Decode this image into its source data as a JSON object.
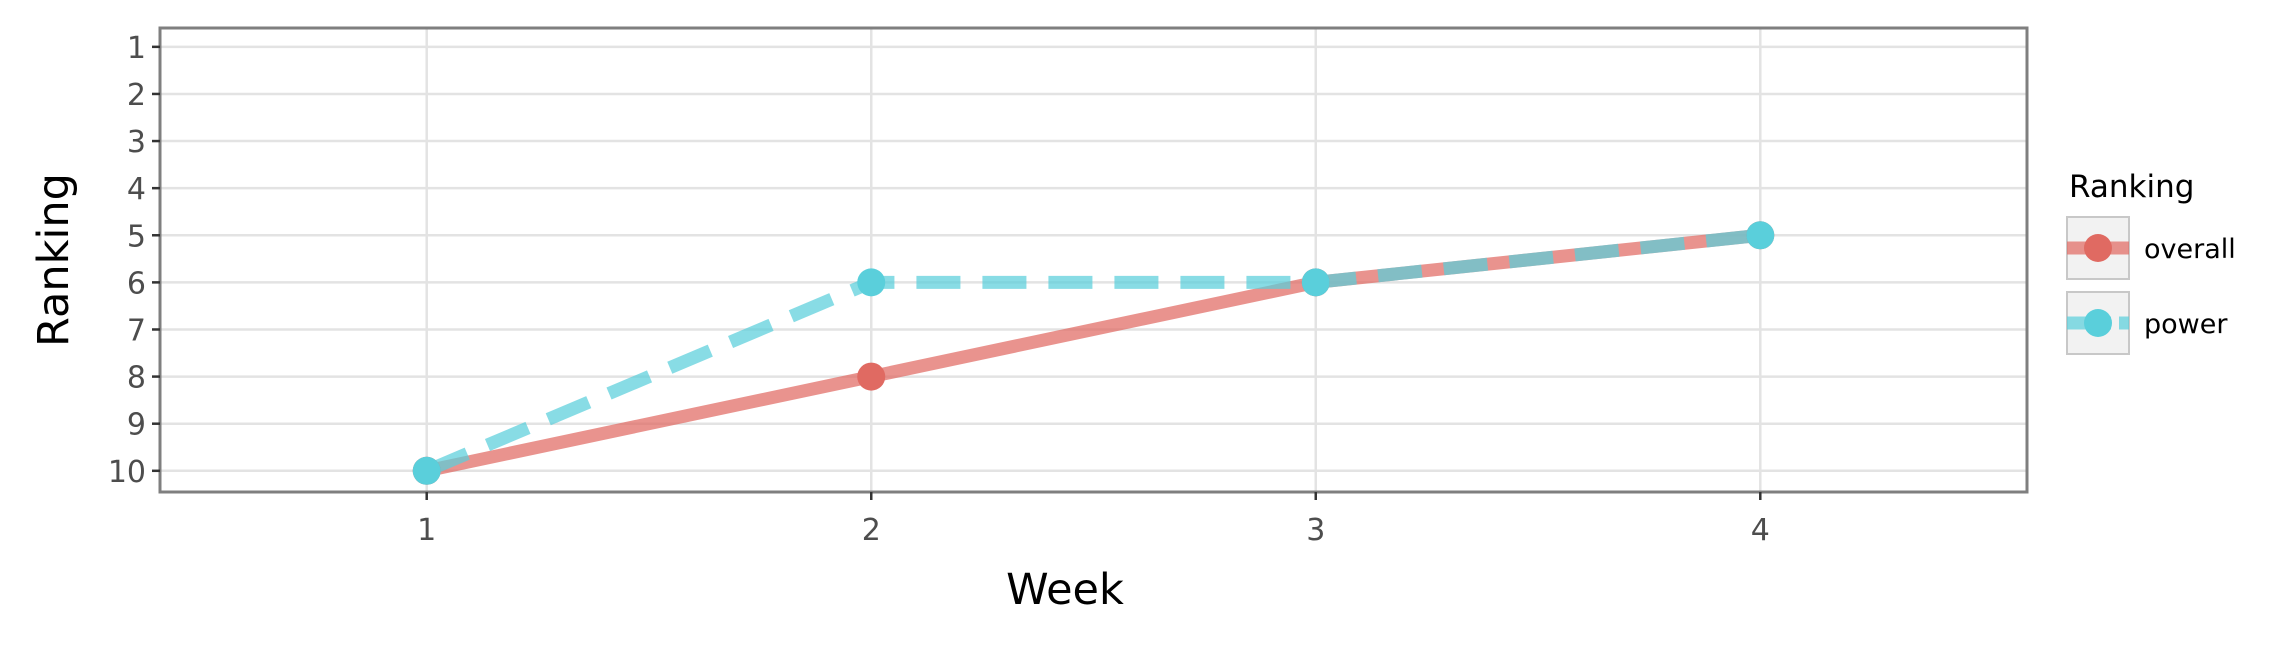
{
  "chart_data": {
    "type": "line",
    "title": "",
    "xlabel": "Week",
    "ylabel": "Ranking",
    "x": [
      1,
      2,
      3,
      4
    ],
    "xticks": [
      "1",
      "2",
      "3",
      "4"
    ],
    "yticks": [
      "1",
      "2",
      "3",
      "4",
      "5",
      "6",
      "7",
      "8",
      "9",
      "10"
    ],
    "xlim": [
      0.4,
      4.6
    ],
    "ylim": [
      0.6,
      10.45
    ],
    "y_reversed": true,
    "grid": true,
    "legend": {
      "title": "Ranking",
      "placement": "right"
    },
    "series": [
      {
        "name": "overall",
        "values": [
          10,
          8,
          6,
          5
        ],
        "color": "#E06A62",
        "line_style": "solid"
      },
      {
        "name": "power",
        "values": [
          10,
          6,
          6,
          5
        ],
        "color": "#5ACFDB",
        "line_style": "dashed"
      }
    ]
  }
}
